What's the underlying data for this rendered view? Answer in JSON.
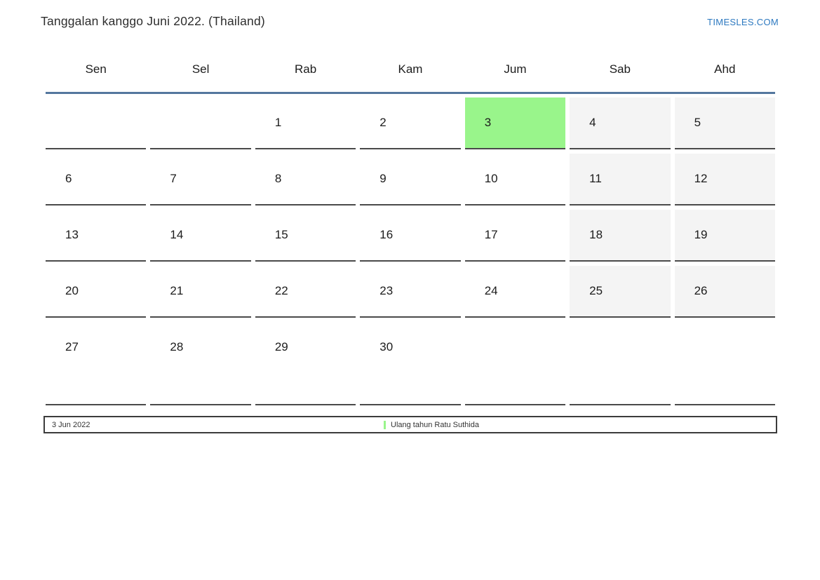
{
  "header": {
    "title": "Tanggalan kanggo Juni 2022. (Thailand)",
    "site": "TIMESLES.COM"
  },
  "calendar": {
    "day_headers": [
      "Sen",
      "Sel",
      "Rab",
      "Kam",
      "Jum",
      "Sab",
      "Ahd"
    ],
    "weeks": [
      [
        "",
        "",
        "1",
        "2",
        "3",
        "4",
        "5"
      ],
      [
        "6",
        "7",
        "8",
        "9",
        "10",
        "11",
        "12"
      ],
      [
        "13",
        "14",
        "15",
        "16",
        "17",
        "18",
        "19"
      ],
      [
        "20",
        "21",
        "22",
        "23",
        "24",
        "25",
        "26"
      ],
      [
        "27",
        "28",
        "29",
        "30",
        "",
        "",
        ""
      ]
    ],
    "weekend_columns": [
      5,
      6
    ],
    "highlighted_day": "3",
    "colors": {
      "highlight": "#99f58b",
      "weekend_bg": "#f4f4f4",
      "header_line": "#54779e",
      "cell_border": "#4a4a4a",
      "link_blue": "#2d79c0"
    }
  },
  "legend": {
    "date": "3 Jun 2022",
    "event": "Ulang tahun Ratu Suthida"
  }
}
